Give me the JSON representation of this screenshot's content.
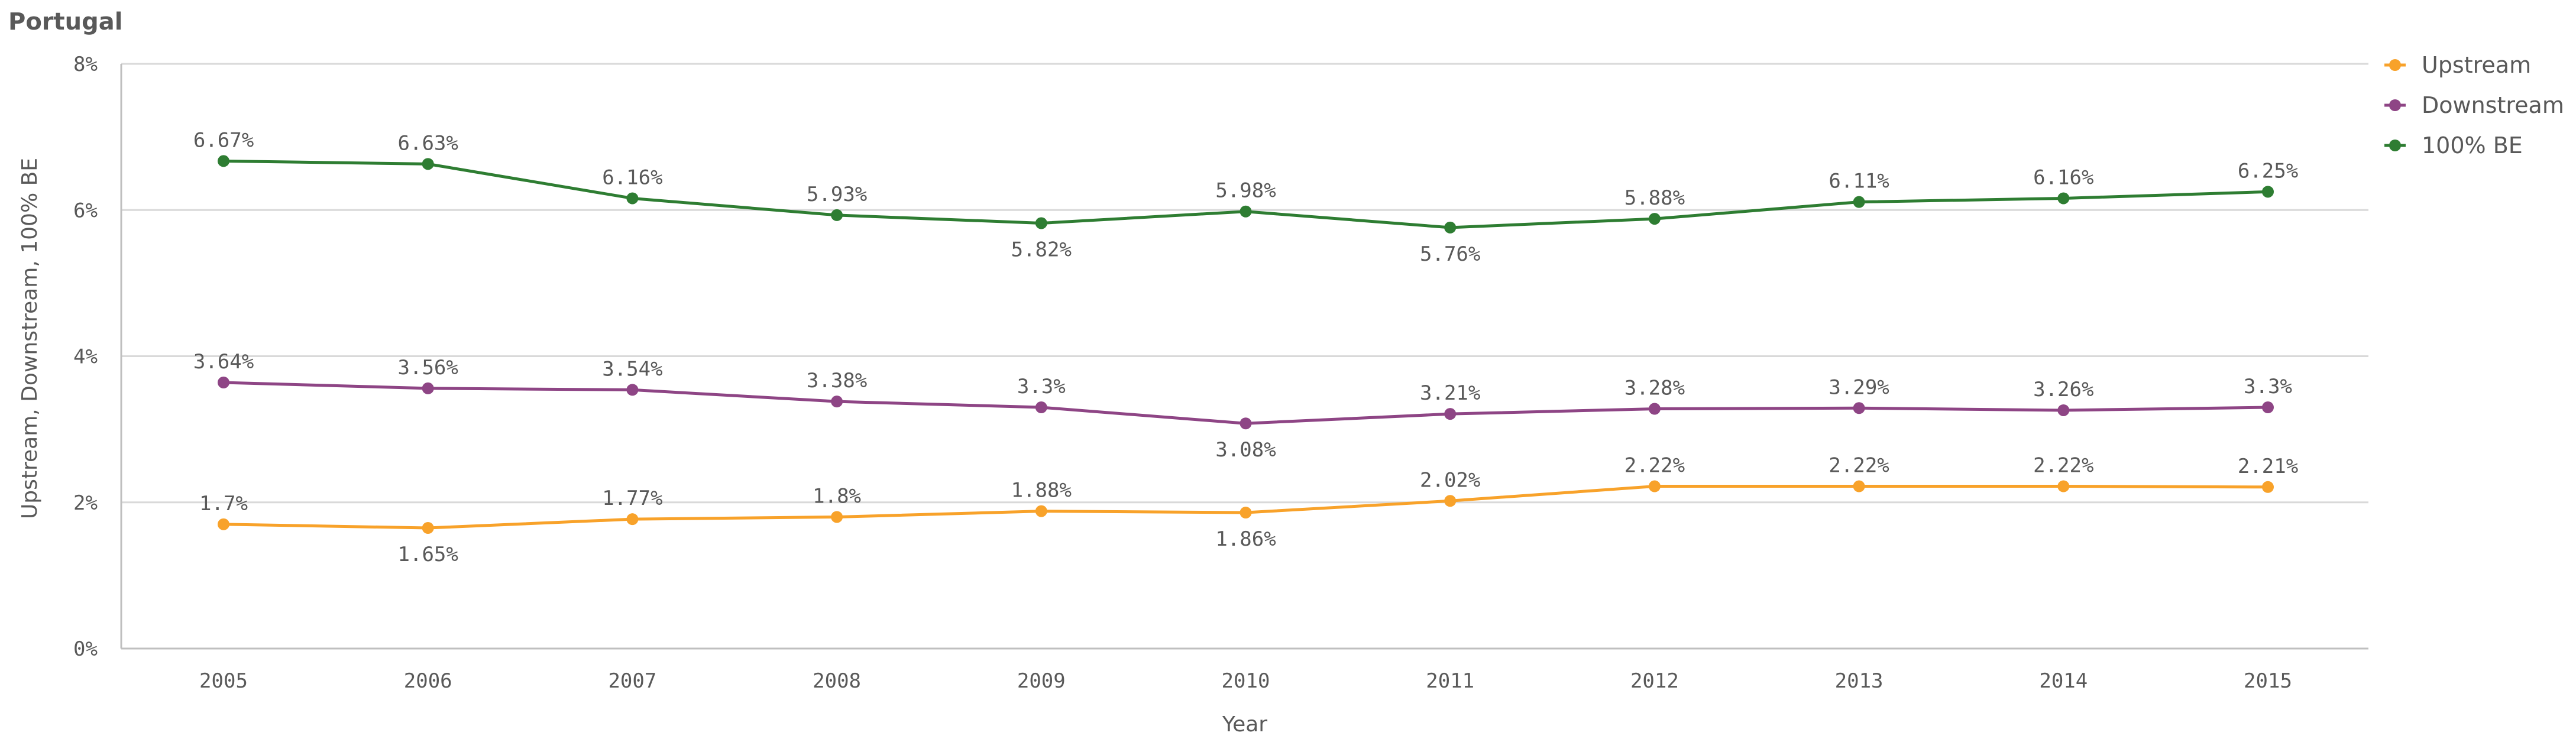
{
  "chart_data": {
    "type": "line",
    "title": "Portugal",
    "xlabel": "Year",
    "ylabel": "Upstream, Downstream, 100% BE",
    "ylim": [
      0,
      8
    ],
    "yticks": [
      "0%",
      "2%",
      "4%",
      "6%",
      "8%"
    ],
    "ytick_values": [
      0,
      2,
      4,
      6,
      8
    ],
    "categories": [
      "2005",
      "2006",
      "2007",
      "2008",
      "2009",
      "2010",
      "2011",
      "2012",
      "2013",
      "2014",
      "2015"
    ],
    "grid": true,
    "legend_position": "top-right",
    "series": [
      {
        "name": "Upstream",
        "color": "#f8a22a",
        "values": [
          1.7,
          1.65,
          1.77,
          1.8,
          1.88,
          1.86,
          2.02,
          2.22,
          2.22,
          2.22,
          2.21
        ],
        "labels": [
          "1.7%",
          "1.65%",
          "1.77%",
          "1.8%",
          "1.88%",
          "1.86%",
          "2.02%",
          "2.22%",
          "2.22%",
          "2.22%",
          "2.21%"
        ],
        "label_positions": [
          "above",
          "below",
          "above",
          "above",
          "above",
          "below",
          "above",
          "above",
          "above",
          "above",
          "above"
        ]
      },
      {
        "name": "Downstream",
        "color": "#8e4585",
        "values": [
          3.64,
          3.56,
          3.54,
          3.38,
          3.3,
          3.08,
          3.21,
          3.28,
          3.29,
          3.26,
          3.3
        ],
        "labels": [
          "3.64%",
          "3.56%",
          "3.54%",
          "3.38%",
          "3.3%",
          "3.08%",
          "3.21%",
          "3.28%",
          "3.29%",
          "3.26%",
          "3.3%"
        ],
        "label_positions": [
          "above",
          "above",
          "above",
          "above",
          "above",
          "below",
          "above",
          "above",
          "above",
          "above",
          "above"
        ]
      },
      {
        "name": "100% BE",
        "color": "#2e7d32",
        "values": [
          6.67,
          6.63,
          6.16,
          5.93,
          5.82,
          5.98,
          5.76,
          5.88,
          6.11,
          6.16,
          6.25
        ],
        "labels": [
          "6.67%",
          "6.63%",
          "6.16%",
          "5.93%",
          "5.82%",
          "5.98%",
          "5.76%",
          "5.88%",
          "6.11%",
          "6.16%",
          "6.25%"
        ],
        "label_positions": [
          "above",
          "above",
          "above",
          "above",
          "below",
          "above",
          "below",
          "above",
          "above",
          "above",
          "above"
        ]
      }
    ]
  }
}
